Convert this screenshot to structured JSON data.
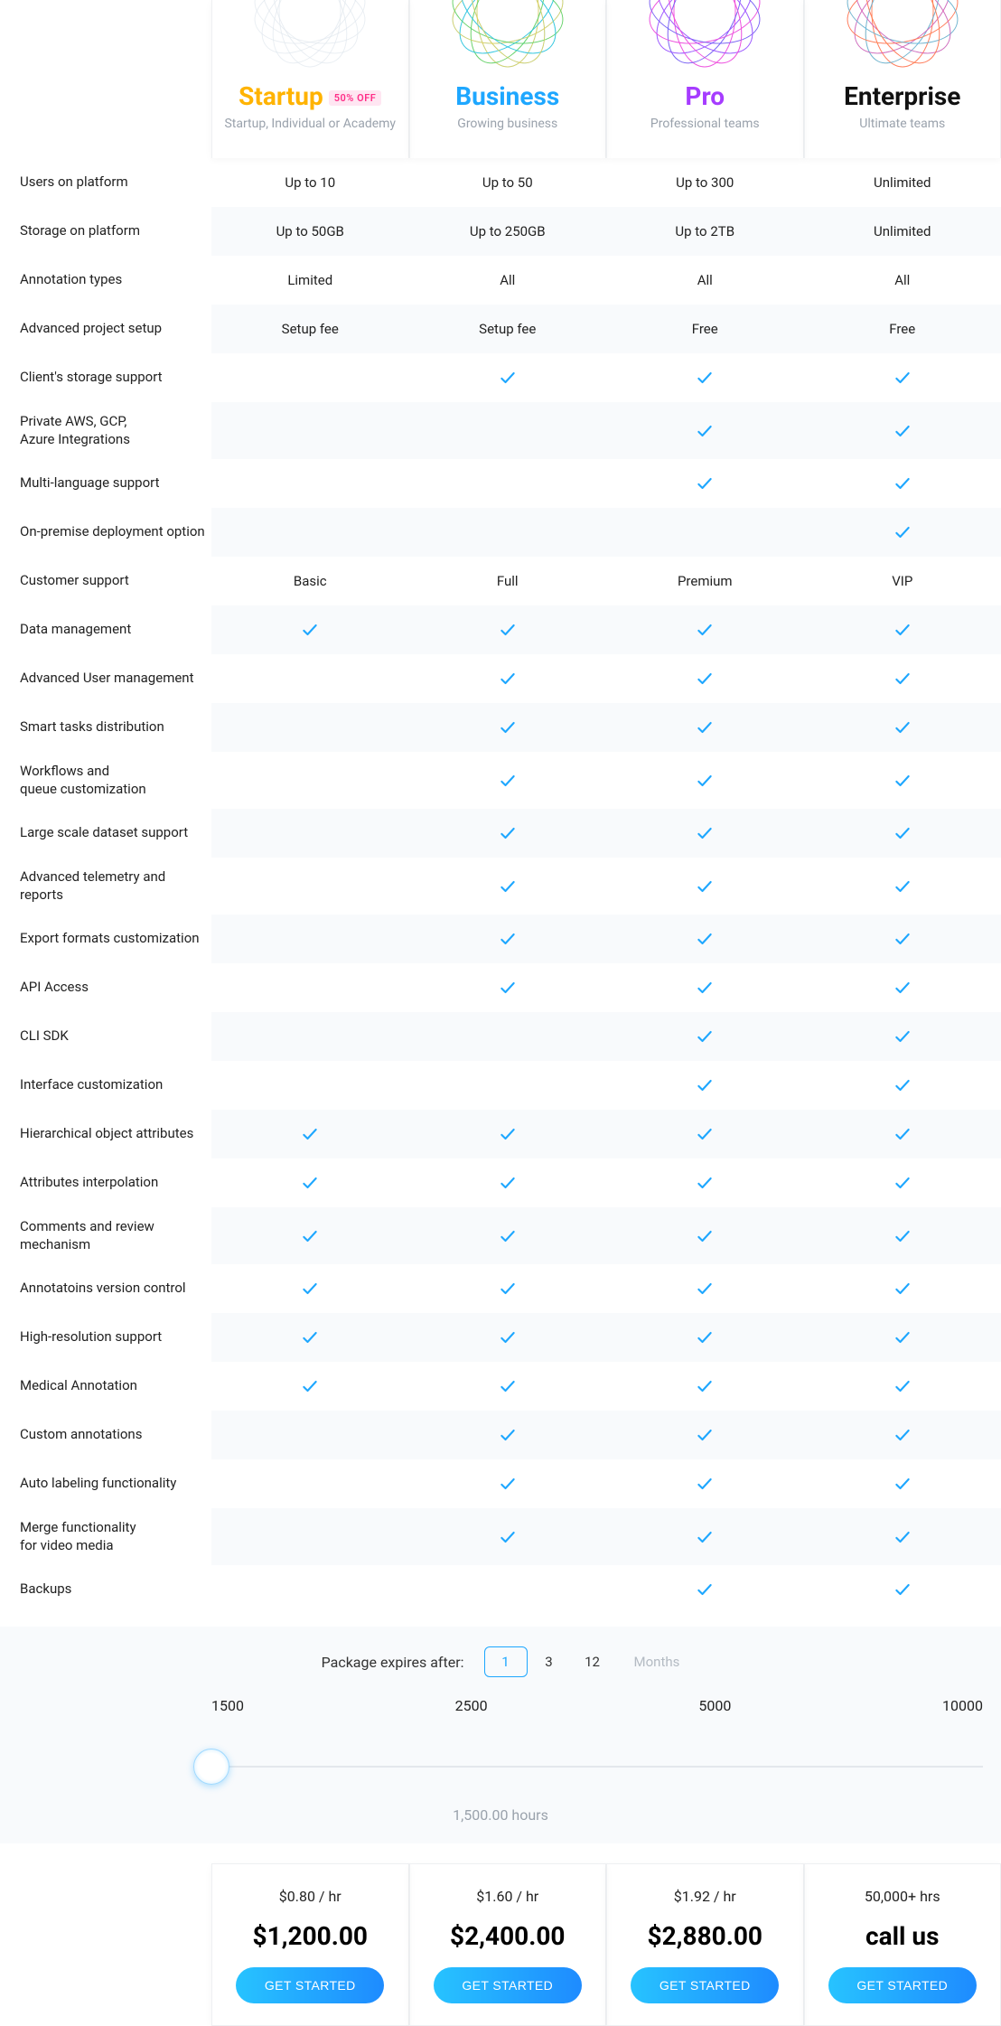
{
  "plans": [
    {
      "key": "startup",
      "title": "Startup",
      "subtitle": "Startup, Individual or Academy",
      "title_color": "#ffb300",
      "badge": "50% OFF",
      "deco_colors": [
        "#dfe7ee",
        "#dfe7ee"
      ]
    },
    {
      "key": "business",
      "title": "Business",
      "subtitle": "Growing business",
      "title_color": "#1ea7ff",
      "badge": null,
      "deco_colors": [
        "#2cc0ff",
        "#ffd23e",
        "#34d27b"
      ]
    },
    {
      "key": "pro",
      "title": "Pro",
      "subtitle": "Professional teams",
      "title_color": "#a63cff",
      "badge": null,
      "deco_colors": [
        "#b44dff",
        "#ff4dd2",
        "#4d6bff"
      ]
    },
    {
      "key": "enterprise",
      "title": "Enterprise",
      "subtitle": "Ultimate teams",
      "title_color": "#111111",
      "badge": null,
      "deco_colors": [
        "#ff4da6",
        "#ff8a3d",
        "#3dc1ff"
      ]
    }
  ],
  "check_color": "#1ea7ff",
  "alt_row_bg": "#f8fafc",
  "features": [
    {
      "label": "Users on platform",
      "vals": [
        "Up to 10",
        "Up to 50",
        "Up to 300",
        "Unlimited"
      ]
    },
    {
      "label": "Storage on platform",
      "vals": [
        "Up to 50GB",
        "Up to 250GB",
        "Up to 2TB",
        "Unlimited"
      ]
    },
    {
      "label": "Annotation types",
      "vals": [
        "Limited",
        "All",
        "All",
        "All"
      ]
    },
    {
      "label": "Advanced project setup",
      "vals": [
        "Setup fee",
        "Setup fee",
        "Free",
        "Free"
      ]
    },
    {
      "label": "Client's storage support",
      "vals": [
        "",
        true,
        true,
        true
      ]
    },
    {
      "label": "Private AWS, GCP,\nAzure Integrations",
      "vals": [
        "",
        "",
        true,
        true
      ]
    },
    {
      "label": "Multi-language support",
      "vals": [
        "",
        "",
        true,
        true
      ]
    },
    {
      "label": "On-premise deployment option",
      "vals": [
        "",
        "",
        "",
        true
      ]
    },
    {
      "label": "Customer support",
      "vals": [
        "Basic",
        "Full",
        "Premium",
        "VIP"
      ]
    },
    {
      "label": "Data management",
      "vals": [
        true,
        true,
        true,
        true
      ]
    },
    {
      "label": "Advanced User management",
      "vals": [
        "",
        true,
        true,
        true
      ]
    },
    {
      "label": "Smart tasks distribution",
      "vals": [
        "",
        true,
        true,
        true
      ]
    },
    {
      "label": "Workflows and\nqueue customization",
      "vals": [
        "",
        true,
        true,
        true
      ]
    },
    {
      "label": "Large scale dataset support",
      "vals": [
        "",
        true,
        true,
        true
      ]
    },
    {
      "label": "Advanced telemetry and reports",
      "vals": [
        "",
        true,
        true,
        true
      ]
    },
    {
      "label": "Export formats customization",
      "vals": [
        "",
        true,
        true,
        true
      ]
    },
    {
      "label": "API Access",
      "vals": [
        "",
        true,
        true,
        true
      ]
    },
    {
      "label": "CLI SDK",
      "vals": [
        "",
        "",
        true,
        true
      ]
    },
    {
      "label": "Interface customization",
      "vals": [
        "",
        "",
        true,
        true
      ]
    },
    {
      "label": "Hierarchical object attributes",
      "vals": [
        true,
        true,
        true,
        true
      ]
    },
    {
      "label": "Attributes interpolation",
      "vals": [
        true,
        true,
        true,
        true
      ]
    },
    {
      "label": "Comments and review\nmechanism",
      "vals": [
        true,
        true,
        true,
        true
      ]
    },
    {
      "label": "Annotatoins version control",
      "vals": [
        true,
        true,
        true,
        true
      ]
    },
    {
      "label": "High-resolution support",
      "vals": [
        true,
        true,
        true,
        true
      ]
    },
    {
      "label": "Medical Annotation",
      "vals": [
        true,
        true,
        true,
        true
      ]
    },
    {
      "label": "Custom annotations",
      "vals": [
        "",
        true,
        true,
        true
      ]
    },
    {
      "label": "Auto labeling functionality",
      "vals": [
        "",
        true,
        true,
        true
      ]
    },
    {
      "label": "Merge functionality\nfor video media",
      "vals": [
        "",
        true,
        true,
        true
      ]
    },
    {
      "label": "Backups",
      "vals": [
        "",
        "",
        true,
        true
      ]
    }
  ],
  "expiry": {
    "label": "Package expires after:",
    "options": [
      "1",
      "3",
      "12"
    ],
    "selected": "1",
    "months_label": "Months"
  },
  "slider": {
    "stops": [
      "1500",
      "2500",
      "5000",
      "10000"
    ],
    "value_text": "1,500.00 hours",
    "handle_pct": 0
  },
  "pricing": [
    {
      "rate": "$0.80 / hr",
      "amount": "$1,200.00",
      "cta": "GET STARTED"
    },
    {
      "rate": "$1.60 / hr",
      "amount": "$2,400.00",
      "cta": "GET STARTED"
    },
    {
      "rate": "$1.92 / hr",
      "amount": "$2,880.00",
      "cta": "GET STARTED"
    },
    {
      "rate": "50,000+ hrs",
      "amount": "call us",
      "cta": "GET STARTED"
    }
  ],
  "cta_gradient": [
    "#27c3ff",
    "#1e8bff"
  ]
}
